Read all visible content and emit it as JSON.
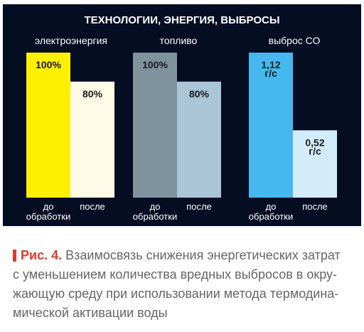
{
  "colors": {
    "background": "#050d22",
    "accent": "#e03a2b"
  },
  "chart_data": {
    "type": "bar",
    "title": "ТЕХНОЛОГИИ, ЭНЕРГИЯ, ВЫБРОСЫ",
    "categories": [
      [
        "до",
        "обработки"
      ],
      [
        "после"
      ]
    ],
    "groups": [
      {
        "name": "электроэнергия",
        "values": [
          100,
          80
        ],
        "labels": [
          "100%",
          "80%"
        ],
        "colors": [
          "#ffef00",
          "#fffbe6"
        ]
      },
      {
        "name": "топливо",
        "values": [
          100,
          80
        ],
        "labels": [
          "100%",
          "80%"
        ],
        "colors": [
          "#7f939e",
          "#a9c5d6"
        ]
      },
      {
        "name": "выброс СО",
        "values": [
          1.12,
          0.52
        ],
        "labels": [
          [
            "1,12",
            "г/с"
          ],
          [
            "0,52",
            "г/с"
          ]
        ],
        "colors": [
          "#46b8ef",
          "#d3ecfb"
        ]
      }
    ]
  },
  "caption": {
    "label": "Рис. 4.",
    "lines": [
      "Взаимосвязь снижения энергетических затрат",
      "с уменьшением количества вредных выбросов в окру-",
      "жающую среду при использовании метода термодина-",
      "мической активации воды"
    ]
  }
}
